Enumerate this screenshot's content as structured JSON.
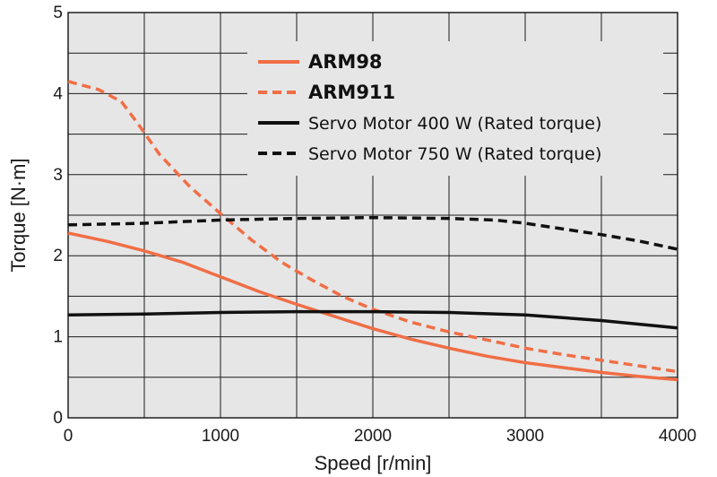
{
  "chart_data": {
    "type": "line",
    "xlabel": "Speed [r/min]",
    "ylabel": "Torque [N·m]",
    "xlim": [
      0,
      4000
    ],
    "ylim": [
      0,
      5
    ],
    "x_ticks": [
      0,
      1000,
      2000,
      3000,
      4000
    ],
    "y_ticks": [
      0,
      1,
      2,
      3,
      4,
      5
    ],
    "x_minor_step": 500,
    "y_minor_step": 0.5,
    "grid": true,
    "legend_position": "top-right",
    "plot_background": "#e6e6e6",
    "series": [
      {
        "name": "ARM98",
        "color": "#f06e46",
        "dash": "solid",
        "bold_label": true,
        "x": [
          0,
          250,
          500,
          750,
          1000,
          1250,
          1500,
          1750,
          2000,
          2250,
          2500,
          2750,
          3000,
          3250,
          3500,
          3750,
          4000
        ],
        "y": [
          2.28,
          2.18,
          2.06,
          1.92,
          1.74,
          1.56,
          1.4,
          1.25,
          1.1,
          0.97,
          0.86,
          0.76,
          0.68,
          0.62,
          0.56,
          0.51,
          0.47
        ]
      },
      {
        "name": "ARM911",
        "color": "#f06e46",
        "dash": "dashed",
        "bold_label": true,
        "x": [
          0,
          200,
          350,
          450,
          600,
          800,
          1000,
          1200,
          1400,
          1600,
          1800,
          2000,
          2250,
          2500,
          2750,
          3000,
          3250,
          3500,
          3750,
          4000
        ],
        "y": [
          4.15,
          4.05,
          3.9,
          3.65,
          3.25,
          2.85,
          2.52,
          2.2,
          1.92,
          1.7,
          1.5,
          1.34,
          1.18,
          1.06,
          0.96,
          0.86,
          0.78,
          0.71,
          0.64,
          0.57
        ]
      },
      {
        "name": "Servo Motor 400 W (Rated torque)",
        "color": "#111111",
        "dash": "solid",
        "bold_label": false,
        "x": [
          0,
          500,
          1000,
          1500,
          2000,
          2500,
          3000,
          3500,
          4000
        ],
        "y": [
          1.27,
          1.28,
          1.3,
          1.31,
          1.31,
          1.3,
          1.27,
          1.2,
          1.11
        ]
      },
      {
        "name": "Servo Motor 750 W (Rated torque)",
        "color": "#111111",
        "dash": "dashed",
        "bold_label": false,
        "x": [
          0,
          500,
          1000,
          1500,
          2000,
          2500,
          2800,
          3000,
          3250,
          3500,
          3750,
          4000
        ],
        "y": [
          2.38,
          2.4,
          2.44,
          2.46,
          2.47,
          2.46,
          2.44,
          2.4,
          2.33,
          2.26,
          2.18,
          2.08
        ]
      }
    ]
  }
}
